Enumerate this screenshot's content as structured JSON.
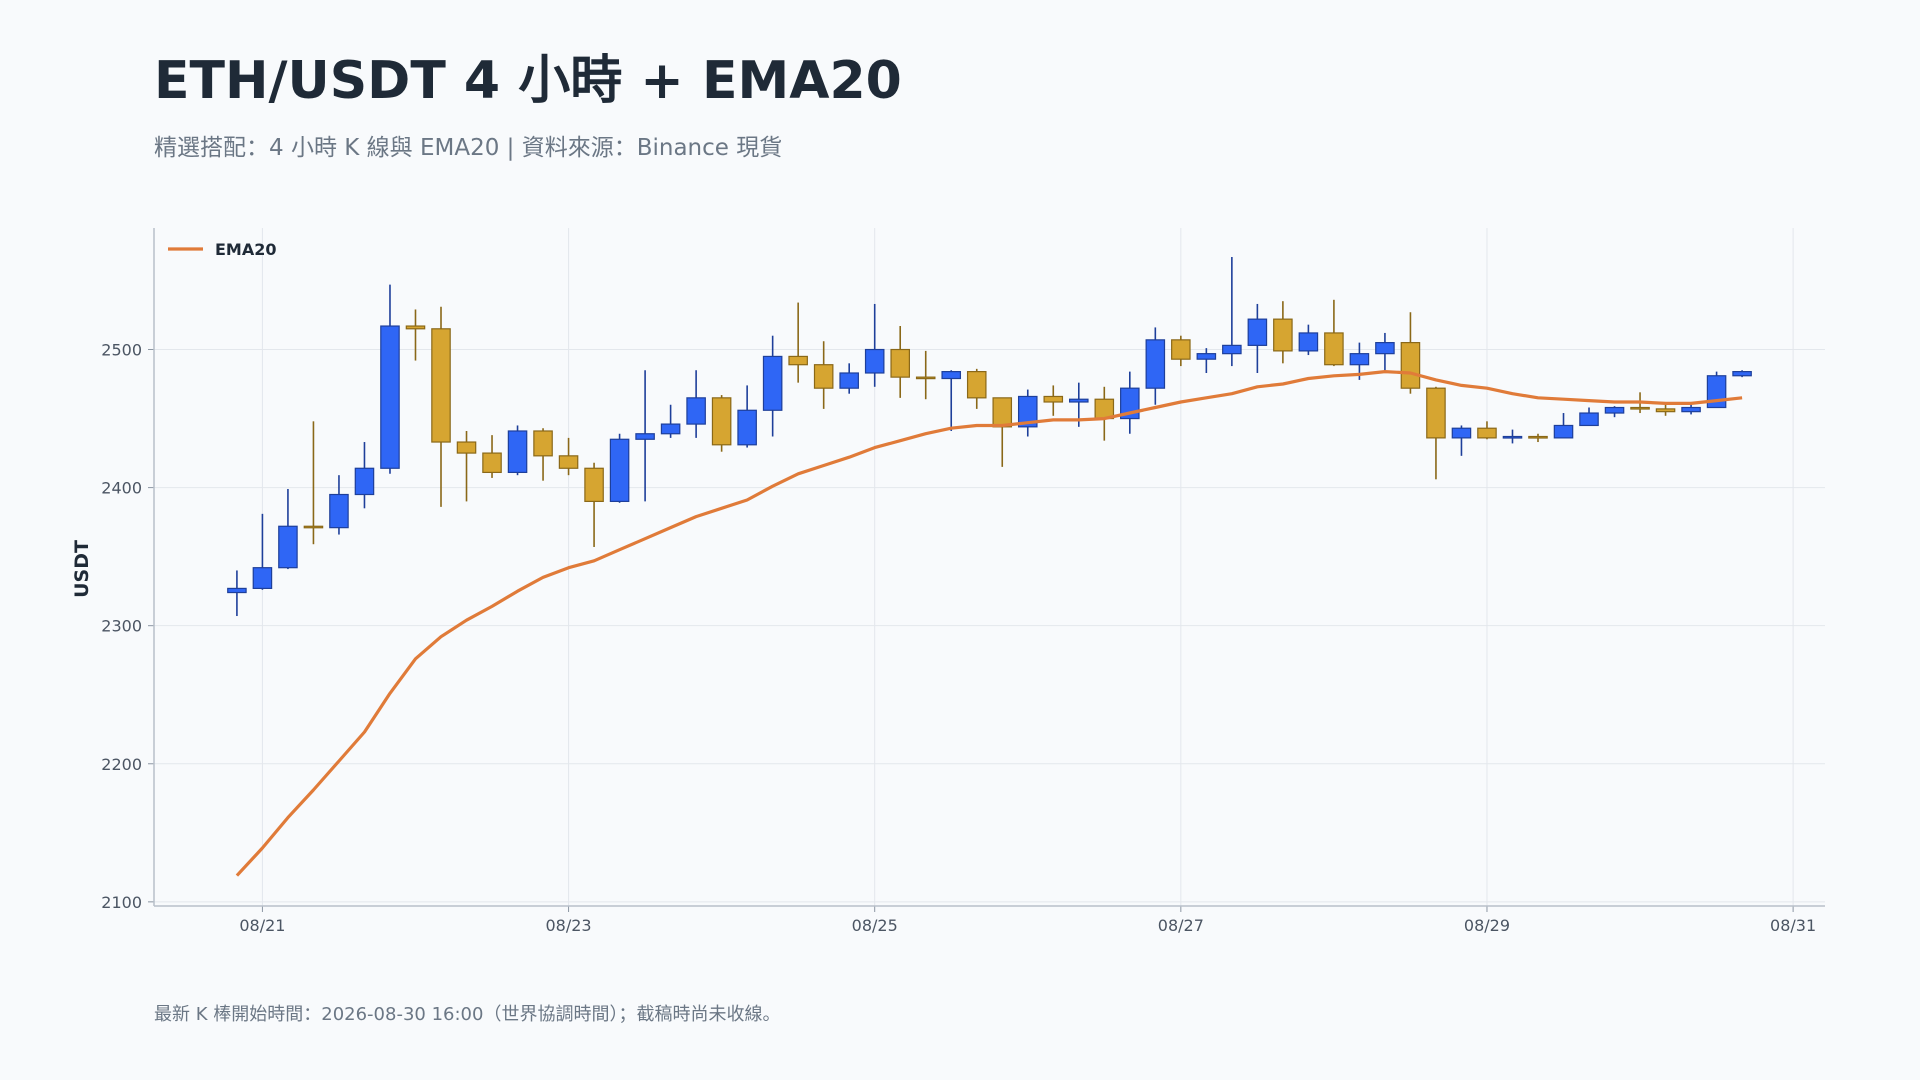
{
  "chart_data": {
    "type": "candlestick",
    "title": "ETH/USDT 4 小時 + EMA20",
    "subtitle": "精選搭配：4 小時 K 線與 EMA20 | 資料來源：Binance 現貨",
    "ylabel": "USDT",
    "footnote": "最新 K 棒開始時間：2026-08-30 16:00（世界協調時間）；截稿時尚未收線。",
    "up_color": "#2f66f5",
    "up_edge": "#1e3f9a",
    "down_color": "#d6a531",
    "down_edge": "#8a6818",
    "grid": true,
    "legend": "upper left",
    "x": [
      "2026-08-20T20:00",
      "2026-08-21T00:00",
      "2026-08-21T04:00",
      "2026-08-21T08:00",
      "2026-08-21T12:00",
      "2026-08-21T16:00",
      "2026-08-21T20:00",
      "2026-08-22T00:00",
      "2026-08-22T04:00",
      "2026-08-22T08:00",
      "2026-08-22T12:00",
      "2026-08-22T16:00",
      "2026-08-22T20:00",
      "2026-08-23T00:00",
      "2026-08-23T04:00",
      "2026-08-23T08:00",
      "2026-08-23T12:00",
      "2026-08-23T16:00",
      "2026-08-23T20:00",
      "2026-08-24T00:00",
      "2026-08-24T04:00",
      "2026-08-24T08:00",
      "2026-08-24T12:00",
      "2026-08-24T16:00",
      "2026-08-24T20:00",
      "2026-08-25T00:00",
      "2026-08-25T04:00",
      "2026-08-25T08:00",
      "2026-08-25T12:00",
      "2026-08-25T16:00",
      "2026-08-25T20:00",
      "2026-08-26T00:00",
      "2026-08-26T04:00",
      "2026-08-26T08:00",
      "2026-08-26T12:00",
      "2026-08-26T16:00",
      "2026-08-26T20:00",
      "2026-08-27T00:00",
      "2026-08-27T04:00",
      "2026-08-27T08:00",
      "2026-08-27T12:00",
      "2026-08-27T16:00",
      "2026-08-27T20:00",
      "2026-08-28T00:00",
      "2026-08-28T04:00",
      "2026-08-28T08:00",
      "2026-08-28T12:00",
      "2026-08-28T16:00",
      "2026-08-28T20:00",
      "2026-08-29T00:00",
      "2026-08-29T04:00",
      "2026-08-29T08:00",
      "2026-08-29T12:00",
      "2026-08-29T16:00",
      "2026-08-29T20:00",
      "2026-08-30T00:00",
      "2026-08-30T04:00",
      "2026-08-30T08:00",
      "2026-08-30T12:00",
      "2026-08-30T16:00"
    ],
    "open": [
      2324,
      2327,
      2342,
      2372,
      2371,
      2395,
      2414,
      2517,
      2515,
      2433,
      2425,
      2411,
      2441,
      2423,
      2414,
      2390,
      2435,
      2439,
      2446,
      2465,
      2431,
      2456,
      2495,
      2489,
      2472,
      2483,
      2500,
      2480,
      2479,
      2484,
      2465,
      2444,
      2466,
      2462,
      2464,
      2450,
      2472,
      2507,
      2493,
      2497,
      2503,
      2522,
      2499,
      2512,
      2489,
      2497,
      2505,
      2472,
      2436,
      2443,
      2436,
      2437,
      2436,
      2445,
      2454,
      2458,
      2457,
      2455,
      2458,
      2481
    ],
    "high": [
      2340,
      2381,
      2399,
      2448,
      2409,
      2433,
      2547,
      2529,
      2531,
      2441,
      2438,
      2445,
      2443,
      2436,
      2418,
      2439,
      2485,
      2460,
      2485,
      2467,
      2474,
      2510,
      2534,
      2506,
      2490,
      2533,
      2517,
      2499,
      2485,
      2486,
      2465,
      2471,
      2474,
      2476,
      2473,
      2484,
      2516,
      2510,
      2501,
      2567,
      2533,
      2535,
      2518,
      2536,
      2505,
      2512,
      2527,
      2473,
      2445,
      2448,
      2442,
      2439,
      2454,
      2458,
      2459,
      2469,
      2460,
      2460,
      2484,
      2485
    ],
    "low": [
      2307,
      2326,
      2341,
      2359,
      2366,
      2385,
      2410,
      2492,
      2386,
      2390,
      2407,
      2409,
      2405,
      2409,
      2357,
      2389,
      2390,
      2436,
      2436,
      2426,
      2429,
      2437,
      2476,
      2457,
      2468,
      2473,
      2465,
      2464,
      2441,
      2457,
      2415,
      2437,
      2452,
      2444,
      2434,
      2439,
      2460,
      2488,
      2483,
      2488,
      2483,
      2490,
      2496,
      2488,
      2478,
      2485,
      2468,
      2406,
      2423,
      2435,
      2432,
      2433,
      2436,
      2445,
      2451,
      2454,
      2452,
      2453,
      2458,
      2480
    ],
    "close": [
      2327,
      2342,
      2372,
      2371,
      2395,
      2414,
      2517,
      2515,
      2433,
      2425,
      2411,
      2441,
      2423,
      2414,
      2390,
      2435,
      2439,
      2446,
      2465,
      2431,
      2456,
      2495,
      2489,
      2472,
      2483,
      2500,
      2480,
      2479,
      2484,
      2465,
      2444,
      2466,
      2462,
      2464,
      2450,
      2472,
      2507,
      2493,
      2497,
      2503,
      2522,
      2499,
      2512,
      2489,
      2497,
      2505,
      2472,
      2436,
      2443,
      2436,
      2437,
      2436,
      2445,
      2454,
      2458,
      2457,
      2455,
      2458,
      2481,
      2484
    ],
    "lines": [
      {
        "name": "EMA20",
        "color": "#e07b39",
        "values": [
          2119,
          2139,
          2161,
          2181,
          2202,
          2223,
          2251,
          2276,
          2292,
          2304,
          2314,
          2325,
          2335,
          2342,
          2347,
          2355,
          2363,
          2371,
          2379,
          2385,
          2391,
          2401,
          2410,
          2416,
          2422,
          2429,
          2434,
          2439,
          2443,
          2445,
          2445,
          2447,
          2449,
          2449,
          2450,
          2454,
          2458,
          2462,
          2465,
          2468,
          2473,
          2475,
          2479,
          2481,
          2482,
          2484,
          2483,
          2478,
          2474,
          2472,
          2468,
          2465,
          2464,
          2463,
          2462,
          2462,
          2461,
          2461,
          2463,
          2465
        ]
      }
    ],
    "xlim": [
      "2026-08-20T07:00",
      "2026-08-31T05:00"
    ],
    "xticks": [
      {
        "value": "2026-08-21T00:00",
        "label": "08/21"
      },
      {
        "value": "2026-08-23T00:00",
        "label": "08/23"
      },
      {
        "value": "2026-08-25T00:00",
        "label": "08/25"
      },
      {
        "value": "2026-08-27T00:00",
        "label": "08/27"
      },
      {
        "value": "2026-08-29T00:00",
        "label": "08/29"
      },
      {
        "value": "2026-08-31T00:00",
        "label": "08/31"
      }
    ],
    "ylim": [
      2097,
      2588
    ],
    "yticks": [
      2100,
      2200,
      2300,
      2400,
      2500
    ]
  }
}
